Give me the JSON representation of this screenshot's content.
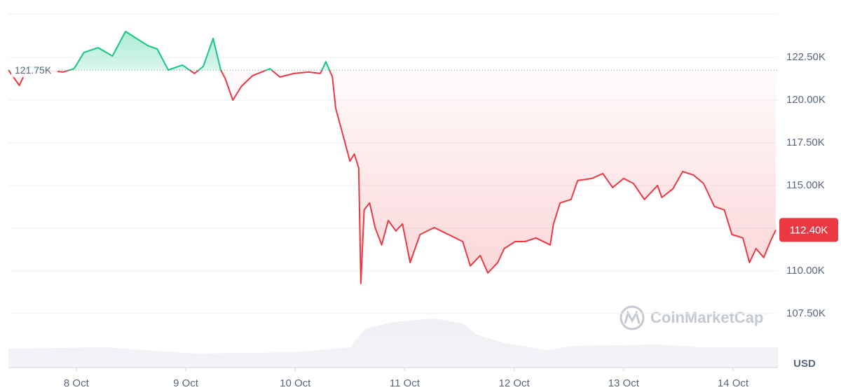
{
  "chart_data": {
    "type": "line",
    "x": [
      7.38,
      7.48,
      7.56,
      7.69,
      7.88,
      7.98,
      8.07,
      8.2,
      8.33,
      8.45,
      8.55,
      8.65,
      8.74,
      8.84,
      8.97,
      9.08,
      9.16,
      9.25,
      9.32,
      9.36,
      9.43,
      9.51,
      9.61,
      9.77,
      9.86,
      9.99,
      10.12,
      10.23,
      10.28,
      10.34,
      10.37,
      10.44,
      10.5,
      10.54,
      10.58,
      10.6,
      10.63,
      10.68,
      10.73,
      10.79,
      10.85,
      10.92,
      10.98,
      11.05,
      11.14,
      11.27,
      11.4,
      11.53,
      11.6,
      11.69,
      11.76,
      11.85,
      11.91,
      12.01,
      12.1,
      12.2,
      12.33,
      12.36,
      12.42,
      12.52,
      12.58,
      12.71,
      12.81,
      12.9,
      13.0,
      13.09,
      13.19,
      13.31,
      13.35,
      13.45,
      13.54,
      13.64,
      13.73,
      13.83,
      13.92,
      13.99,
      14.09,
      14.15,
      14.21,
      14.28,
      14.34,
      14.39
    ],
    "values": [
      121760,
      120860,
      121970,
      121760,
      121640,
      121840,
      122790,
      123070,
      122580,
      124020,
      123610,
      123200,
      122990,
      121760,
      122050,
      121560,
      121970,
      123610,
      121760,
      121270,
      120000,
      120820,
      121430,
      121840,
      121350,
      121560,
      121640,
      121560,
      122250,
      121350,
      119510,
      117870,
      116430,
      116840,
      116030,
      109260,
      113570,
      113980,
      112540,
      111520,
      112950,
      112340,
      112750,
      110490,
      112130,
      112540,
      112130,
      111720,
      110290,
      110900,
      109880,
      110490,
      111310,
      111720,
      111720,
      111930,
      111520,
      112750,
      113980,
      114180,
      115290,
      115410,
      115700,
      114880,
      115410,
      115120,
      114180,
      115000,
      114300,
      114800,
      115820,
      115610,
      115120,
      113770,
      113570,
      112130,
      111930,
      110490,
      111310,
      110780,
      111720,
      112400
    ],
    "up_color": "#16c784",
    "down_color": "#ea3943",
    "baseline": {
      "value": 121750,
      "label": "121.75K"
    },
    "last_price": {
      "value": 112400,
      "label": "112.40K"
    },
    "xlim": [
      7.38,
      14.41
    ],
    "xticks": [
      {
        "value": 8,
        "label": "8 Oct"
      },
      {
        "value": 9,
        "label": "9 Oct"
      },
      {
        "value": 10,
        "label": "10 Oct"
      },
      {
        "value": 11,
        "label": "11 Oct"
      },
      {
        "value": 12,
        "label": "12 Oct"
      },
      {
        "value": 13,
        "label": "13 Oct"
      },
      {
        "value": 14,
        "label": "14 Oct"
      }
    ],
    "ylim": [
      104340,
      125040
    ],
    "yticks": [
      {
        "value": 107500,
        "label": "107.50K"
      },
      {
        "value": 110000,
        "label": "110.00K"
      },
      {
        "value": 112500,
        "label": "112.50K"
      },
      {
        "value": 115000,
        "label": "115.00K"
      },
      {
        "value": 117500,
        "label": "117.50K"
      },
      {
        "value": 120000,
        "label": "120.00K"
      },
      {
        "value": 122500,
        "label": "122.50K"
      }
    ],
    "y_label": "USD",
    "watermark": "CoinMarketCap",
    "grid": true
  }
}
